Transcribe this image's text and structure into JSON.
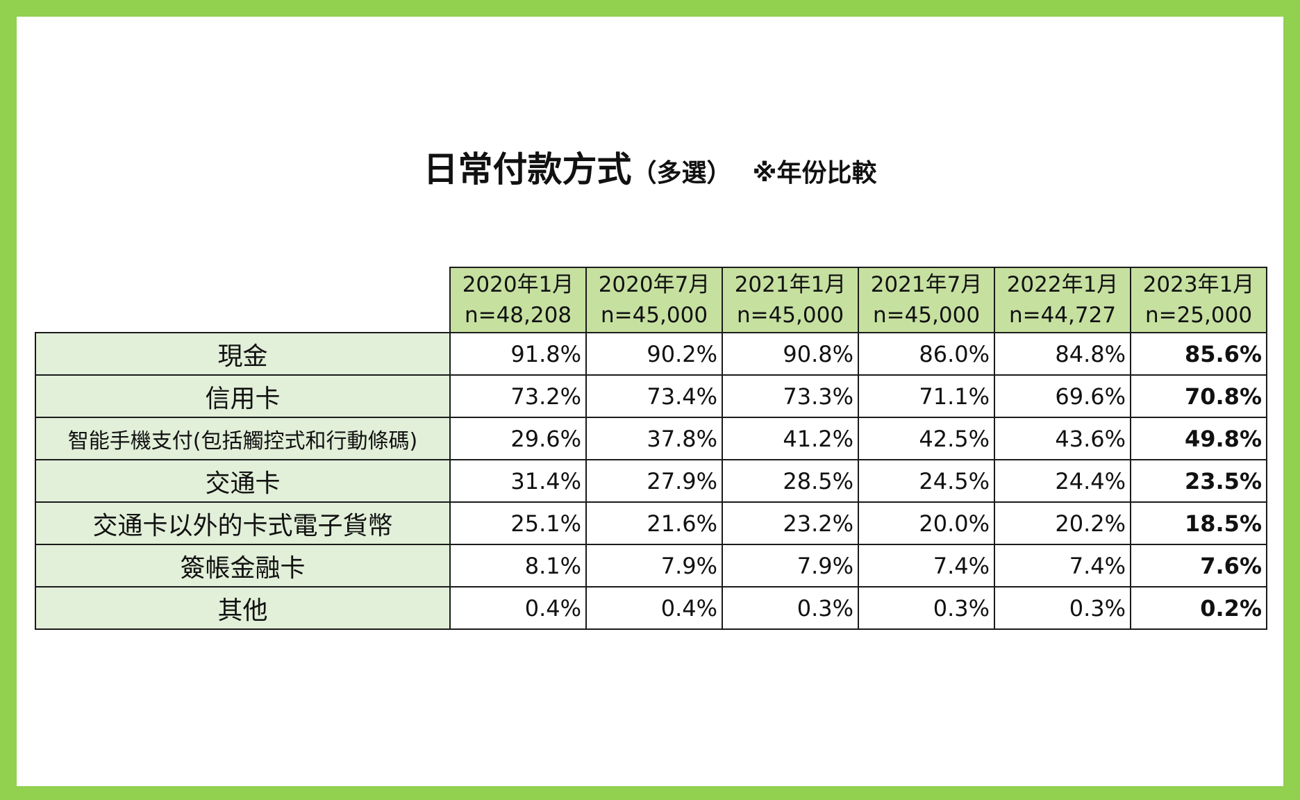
{
  "title": {
    "main": "日常付款方式",
    "sub": "（多選）",
    "note": "※年份比較"
  },
  "chart_data": {
    "type": "table",
    "title": "日常付款方式（多選）",
    "note": "※年份比較",
    "columns": [
      {
        "period": "2020年1月",
        "sample": "n=48,208"
      },
      {
        "period": "2020年7月",
        "sample": "n=45,000"
      },
      {
        "period": "2021年1月",
        "sample": "n=45,000"
      },
      {
        "period": "2021年7月",
        "sample": "n=45,000"
      },
      {
        "period": "2022年1月",
        "sample": "n=44,727"
      },
      {
        "period": "2023年1月",
        "sample": "n=25,000"
      }
    ],
    "rows": [
      {
        "label": "現金",
        "values": [
          "91.8%",
          "90.2%",
          "90.8%",
          "86.0%",
          "84.8%",
          "85.6%"
        ]
      },
      {
        "label": "信用卡",
        "values": [
          "73.2%",
          "73.4%",
          "73.3%",
          "71.1%",
          "69.6%",
          "70.8%"
        ]
      },
      {
        "label": "智能手機支付(包括觸控式和行動條碼)",
        "values": [
          "29.6%",
          "37.8%",
          "41.2%",
          "42.5%",
          "43.6%",
          "49.8%"
        ]
      },
      {
        "label": "交通卡",
        "values": [
          "31.4%",
          "27.9%",
          "28.5%",
          "24.5%",
          "24.4%",
          "23.5%"
        ]
      },
      {
        "label": "交通卡以外的卡式電子貨幣",
        "values": [
          "25.1%",
          "21.6%",
          "23.2%",
          "20.0%",
          "20.2%",
          "18.5%"
        ]
      },
      {
        "label": "簽帳金融卡",
        "values": [
          "8.1%",
          "7.9%",
          "7.9%",
          "7.4%",
          "7.4%",
          "7.6%"
        ]
      },
      {
        "label": "其他",
        "values": [
          "0.4%",
          "0.4%",
          "0.3%",
          "0.3%",
          "0.3%",
          "0.2%"
        ]
      }
    ],
    "highlight_last_column": true,
    "colors": {
      "border": "#92d050",
      "header_fill": "#c6e0a0",
      "label_fill": "#e2efd9"
    }
  }
}
